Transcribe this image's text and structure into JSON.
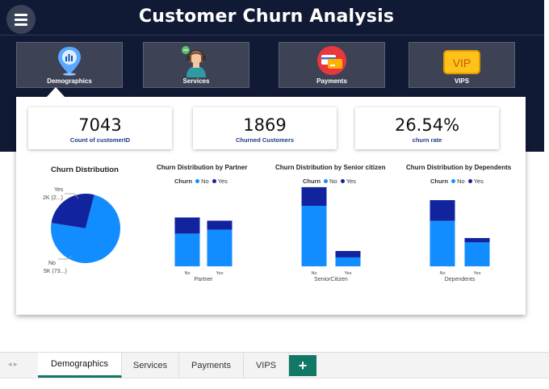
{
  "app": {
    "title": "Customer Churn Analysis"
  },
  "nav": [
    {
      "label": "Demographics",
      "icon": "demographics-map-pin-icon"
    },
    {
      "label": "Services",
      "icon": "support-agent-icon"
    },
    {
      "label": "Payments",
      "icon": "payment-card-icon"
    },
    {
      "label": "VIPS",
      "icon": "vip-badge-icon"
    }
  ],
  "kpis": [
    {
      "value": "7043",
      "caption": "Count of customerID"
    },
    {
      "value": "1869",
      "caption": "Churned Customers"
    },
    {
      "value": "26.54%",
      "caption": "churn rate"
    }
  ],
  "legend": {
    "title": "Churn",
    "no": "No",
    "yes": "Yes"
  },
  "colors": {
    "no": "#118dff",
    "yes": "#12239e",
    "accent": "#117865",
    "header": "#111a35"
  },
  "chart_data": [
    {
      "type": "pie",
      "title": "Churn Distribution",
      "labels": [
        "No",
        "Yes"
      ],
      "values": [
        5174,
        1869
      ],
      "slice_labels": [
        "5K (73...)",
        "2K (2...)"
      ]
    },
    {
      "type": "bar",
      "stacked": true,
      "title": "Churn Distribution by Partner",
      "categories": [
        "No",
        "Yes"
      ],
      "xlabel": "Partner",
      "series": [
        {
          "name": "No",
          "values": [
            2441,
            2733
          ]
        },
        {
          "name": "Yes",
          "values": [
            1200,
            669
          ]
        }
      ]
    },
    {
      "type": "bar",
      "stacked": true,
      "title": "Churn Distribution by Senior citizen",
      "categories": [
        "No",
        "Yes"
      ],
      "xlabel": "SeniorCitizen",
      "series": [
        {
          "name": "No",
          "values": [
            4508,
            666
          ]
        },
        {
          "name": "Yes",
          "values": [
            1393,
            476
          ]
        }
      ]
    },
    {
      "type": "bar",
      "stacked": true,
      "title": "Churn Distribution by Dependents",
      "categories": [
        "No",
        "Yes"
      ],
      "xlabel": "Dependents",
      "series": [
        {
          "name": "No",
          "values": [
            3390,
            1784
          ]
        },
        {
          "name": "Yes",
          "values": [
            1543,
            326
          ]
        }
      ]
    }
  ],
  "tabs": [
    {
      "label": "Demographics",
      "active": true
    },
    {
      "label": "Services",
      "active": false
    },
    {
      "label": "Payments",
      "active": false
    },
    {
      "label": "VIPS",
      "active": false
    }
  ],
  "add_tab_label": "+",
  "tab_nav_arrows": "◂ ▸"
}
